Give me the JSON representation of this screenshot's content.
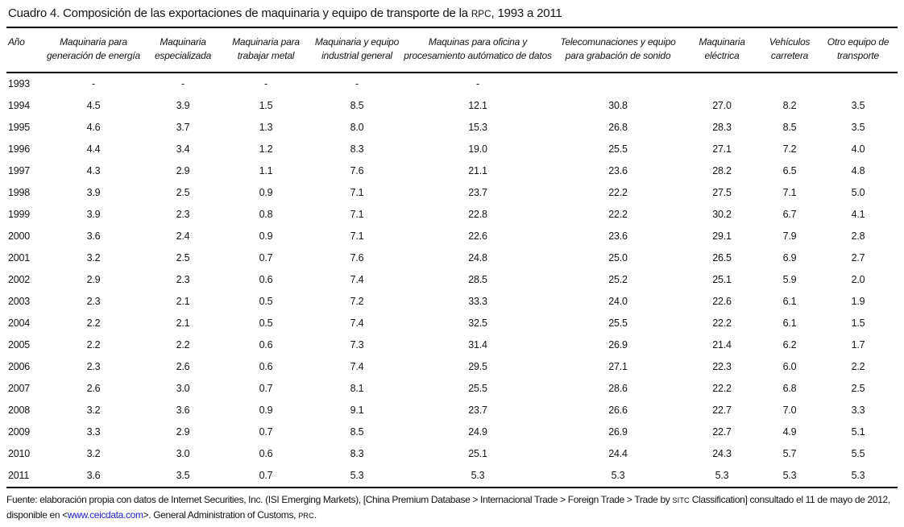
{
  "title": {
    "part1": "Cuadro 4. Composición de las exportaciones de maquinaria y equipo de transporte de la ",
    "smallcaps": "RPC",
    "part2": ", 1993 a 2011"
  },
  "table": {
    "columns": [
      {
        "lines": [
          "Año"
        ]
      },
      {
        "lines": [
          "Maquinaria para",
          "generación de energía"
        ]
      },
      {
        "lines": [
          "Maquinaria",
          "especializada"
        ]
      },
      {
        "lines": [
          "Maquinaria para",
          "trabajar metal"
        ]
      },
      {
        "lines": [
          "Maquinaria y equipo",
          "industrial general"
        ]
      },
      {
        "lines": [
          "Maquinas para oficina y",
          "procesamiento autómatico de datos"
        ]
      },
      {
        "lines": [
          "Telecomunaciones y equipo",
          "para grabación de sonido"
        ]
      },
      {
        "lines": [
          "Maquinaria",
          "eléctrica"
        ]
      },
      {
        "lines": [
          "Vehículos",
          "carretera"
        ]
      },
      {
        "lines": [
          "Otro equipo de",
          "transporte"
        ]
      }
    ],
    "rows": [
      {
        "year": "1993",
        "values": [
          "-",
          "-",
          "-",
          "-",
          "-",
          "",
          "",
          "",
          ""
        ]
      },
      {
        "year": "1994",
        "values": [
          "4.5",
          "3.9",
          "1.5",
          "8.5",
          "12.1",
          "30.8",
          "27.0",
          "8.2",
          "3.5"
        ]
      },
      {
        "year": "1995",
        "values": [
          "4.6",
          "3.7",
          "1.3",
          "8.0",
          "15.3",
          "26.8",
          "28.3",
          "8.5",
          "3.5"
        ]
      },
      {
        "year": "1996",
        "values": [
          "4.4",
          "3.4",
          "1.2",
          "8.3",
          "19.0",
          "25.5",
          "27.1",
          "7.2",
          "4.0"
        ]
      },
      {
        "year": "1997",
        "values": [
          "4.3",
          "2.9",
          "1.1",
          "7.6",
          "21.1",
          "23.6",
          "28.2",
          "6.5",
          "4.8"
        ]
      },
      {
        "year": "1998",
        "values": [
          "3.9",
          "2.5",
          "0.9",
          "7.1",
          "23.7",
          "22.2",
          "27.5",
          "7.1",
          "5.0"
        ]
      },
      {
        "year": "1999",
        "values": [
          "3.9",
          "2.3",
          "0.8",
          "7.1",
          "22.8",
          "22.2",
          "30.2",
          "6.7",
          "4.1"
        ]
      },
      {
        "year": "2000",
        "values": [
          "3.6",
          "2.4",
          "0.9",
          "7.1",
          "22.6",
          "23.6",
          "29.1",
          "7.9",
          "2.8"
        ]
      },
      {
        "year": "2001",
        "values": [
          "3.2",
          "2.5",
          "0.7",
          "7.6",
          "24.8",
          "25.0",
          "26.5",
          "6.9",
          "2.7"
        ]
      },
      {
        "year": "2002",
        "values": [
          "2.9",
          "2.3",
          "0.6",
          "7.4",
          "28.5",
          "25.2",
          "25.1",
          "5.9",
          "2.0"
        ]
      },
      {
        "year": "2003",
        "values": [
          "2.3",
          "2.1",
          "0.5",
          "7.2",
          "33.3",
          "24.0",
          "22.6",
          "6.1",
          "1.9"
        ]
      },
      {
        "year": "2004",
        "values": [
          "2.2",
          "2.1",
          "0.5",
          "7.4",
          "32.5",
          "25.5",
          "22.2",
          "6.1",
          "1.5"
        ]
      },
      {
        "year": "2005",
        "values": [
          "2.2",
          "2.2",
          "0.6",
          "7.3",
          "31.4",
          "26.9",
          "21.4",
          "6.2",
          "1.7"
        ]
      },
      {
        "year": "2006",
        "values": [
          "2.3",
          "2.6",
          "0.6",
          "7.4",
          "29.5",
          "27.1",
          "22.3",
          "6.0",
          "2.2"
        ]
      },
      {
        "year": "2007",
        "values": [
          "2.6",
          "3.0",
          "0.7",
          "8.1",
          "25.5",
          "28.6",
          "22.2",
          "6.8",
          "2.5"
        ]
      },
      {
        "year": "2008",
        "values": [
          "3.2",
          "3.6",
          "0.9",
          "9.1",
          "23.7",
          "26.6",
          "22.7",
          "7.0",
          "3.3"
        ]
      },
      {
        "year": "2009",
        "values": [
          "3.3",
          "2.9",
          "0.7",
          "8.5",
          "24.9",
          "26.9",
          "22.7",
          "4.9",
          "5.1"
        ]
      },
      {
        "year": "2010",
        "values": [
          "3.2",
          "3.0",
          "0.6",
          "8.3",
          "25.1",
          "24.4",
          "24.3",
          "5.7",
          "5.5"
        ]
      },
      {
        "year": "2011",
        "values": [
          "3.6",
          "3.5",
          "0.7",
          "5.3",
          "5.3",
          "5.3",
          "5.3",
          "5.3",
          "5.3"
        ]
      }
    ]
  },
  "footer": {
    "segments": [
      {
        "text": "Fuente: elaboración propia con datos de  Internet Securities, Inc. (ISI Emerging Markets), [China Premium Database > Internacional Trade > Foreign Trade > Trade by ",
        "style": "normal"
      },
      {
        "text": "SITC",
        "style": "smallcaps"
      },
      {
        "text": " Classification] consultado el 11 de mayo de 2012, disponible en <",
        "style": "normal"
      },
      {
        "text": "www.ceicdata.com",
        "style": "link"
      },
      {
        "text": ">. General Administration of Customs, ",
        "style": "normal"
      },
      {
        "text": "PRC",
        "style": "smallcaps"
      },
      {
        "text": ".",
        "style": "normal"
      }
    ]
  },
  "colors": {
    "text": "#141414",
    "link": "#2323cc",
    "rule": "#000000",
    "background": "#ffffff"
  }
}
